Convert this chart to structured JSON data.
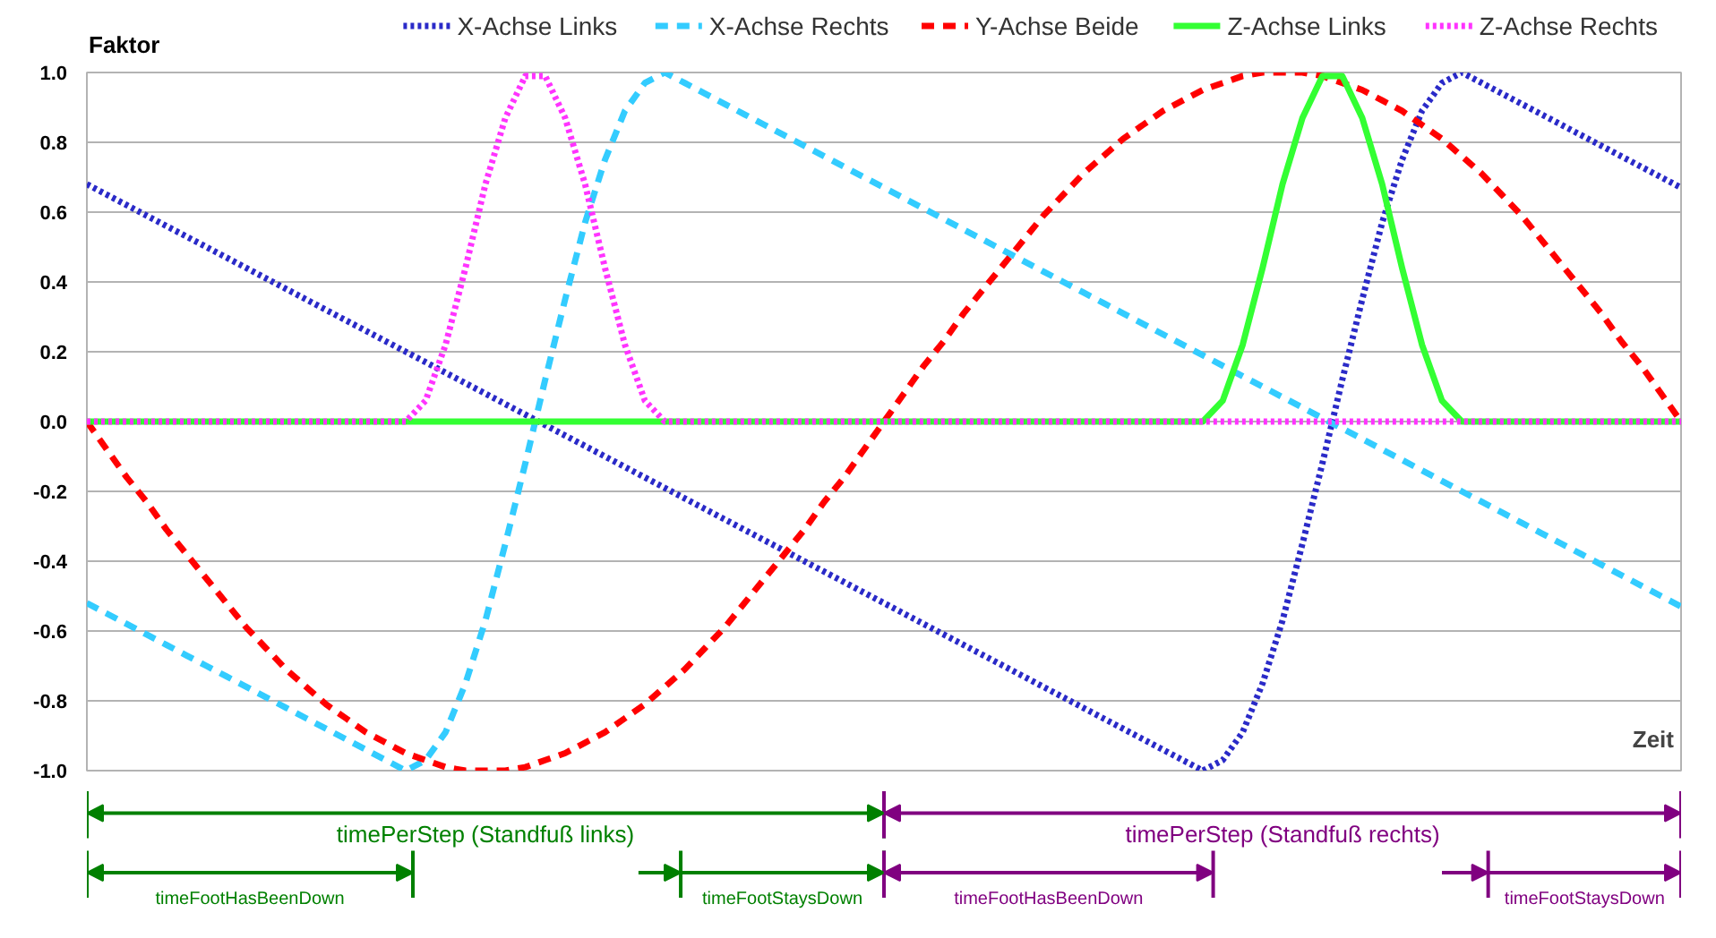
{
  "chart_data": {
    "type": "line",
    "ylabel": "Faktor",
    "xlabel": "Zeit",
    "categories": [
      null,
      null,
      null,
      null,
      null,
      null,
      null,
      null,
      null,
      null,
      null,
      null,
      null,
      null,
      null,
      null,
      null,
      null,
      null,
      null,
      null,
      null,
      null,
      null,
      null,
      null,
      null,
      null,
      null,
      null,
      null,
      null,
      null,
      null,
      null,
      null,
      null,
      null,
      null,
      null,
      null,
      null,
      null,
      null,
      null,
      null,
      null,
      null,
      null,
      null,
      null,
      null,
      null,
      null,
      null,
      null,
      null,
      null,
      null,
      null,
      null,
      null,
      null,
      null,
      null,
      null,
      null,
      null,
      null,
      null,
      null,
      null,
      null,
      null,
      null,
      null,
      null,
      null,
      null,
      null,
      null
    ],
    "series": [
      {
        "name": "X-Achse Links",
        "color": "#2a2ac8",
        "line_style": "dotted",
        "values": [
          0.68,
          0.65,
          0.62,
          0.59,
          0.56,
          0.53,
          0.5,
          0.47,
          0.44,
          0.41,
          0.38,
          0.35,
          0.32,
          0.29,
          0.26,
          0.23,
          0.2,
          0.17,
          0.14,
          0.11,
          0.08,
          0.05,
          0.02,
          -0.01,
          -0.04,
          -0.07,
          -0.1,
          -0.13,
          -0.16,
          -0.19,
          -0.22,
          -0.25,
          -0.28,
          -0.31,
          -0.34,
          -0.37,
          -0.4,
          -0.43,
          -0.46,
          -0.49,
          -0.52,
          -0.55,
          -0.58,
          -0.61,
          -0.64,
          -0.67,
          -0.7,
          -0.73,
          -0.76,
          -0.79,
          -0.82,
          -0.85,
          -0.88,
          -0.91,
          -0.94,
          -0.97,
          -1.0,
          -0.97,
          -0.89,
          -0.75,
          -0.57,
          -0.35,
          -0.12,
          0.12,
          0.35,
          0.57,
          0.75,
          0.89,
          0.97,
          1.0,
          0.97,
          0.94,
          0.91,
          0.88,
          0.85,
          0.82,
          0.79,
          0.76,
          0.73,
          0.7,
          0.67
        ]
      },
      {
        "name": "X-Achse Rechts",
        "color": "#33ccff",
        "line_style": "dashed",
        "values": [
          -0.52,
          -0.55,
          -0.58,
          -0.61,
          -0.64,
          -0.67,
          -0.7,
          -0.73,
          -0.76,
          -0.79,
          -0.82,
          -0.85,
          -0.88,
          -0.91,
          -0.94,
          -0.97,
          -1.0,
          -0.97,
          -0.89,
          -0.75,
          -0.57,
          -0.35,
          -0.12,
          0.12,
          0.35,
          0.57,
          0.75,
          0.89,
          0.97,
          1.0,
          0.97,
          0.94,
          0.91,
          0.88,
          0.85,
          0.82,
          0.79,
          0.76,
          0.73,
          0.7,
          0.67,
          0.64,
          0.61,
          0.58,
          0.55,
          0.52,
          0.49,
          0.46,
          0.43,
          0.4,
          0.37,
          0.34,
          0.31,
          0.28,
          0.25,
          0.22,
          0.19,
          0.16,
          0.13,
          0.1,
          0.07,
          0.04,
          0.01,
          -0.02,
          -0.05,
          -0.08,
          -0.11,
          -0.14,
          -0.17,
          -0.2,
          -0.23,
          -0.26,
          -0.29,
          -0.32,
          -0.35,
          -0.38,
          -0.41,
          -0.44,
          -0.47,
          -0.5,
          -0.53
        ]
      },
      {
        "name": "Y-Achse Beide",
        "color": "#ff0000",
        "line_style": "dashed",
        "values": [
          0,
          -0.08,
          -0.16,
          -0.23,
          -0.31,
          -0.38,
          -0.45,
          -0.52,
          -0.59,
          -0.65,
          -0.71,
          -0.76,
          -0.81,
          -0.85,
          -0.89,
          -0.92,
          -0.95,
          -0.97,
          -0.99,
          -1.0,
          -1.0,
          -1.0,
          -0.99,
          -0.97,
          -0.95,
          -0.92,
          -0.89,
          -0.85,
          -0.81,
          -0.76,
          -0.71,
          -0.65,
          -0.59,
          -0.52,
          -0.45,
          -0.38,
          -0.31,
          -0.23,
          -0.16,
          -0.08,
          0,
          0.08,
          0.16,
          0.23,
          0.31,
          0.38,
          0.45,
          0.52,
          0.59,
          0.65,
          0.71,
          0.76,
          0.81,
          0.85,
          0.89,
          0.92,
          0.95,
          0.97,
          0.99,
          1.0,
          1.0,
          1.0,
          0.99,
          0.97,
          0.95,
          0.92,
          0.89,
          0.85,
          0.81,
          0.76,
          0.71,
          0.65,
          0.59,
          0.52,
          0.45,
          0.38,
          0.31,
          0.23,
          0.16,
          0.08,
          0
        ]
      },
      {
        "name": "Z-Achse Links",
        "color": "#33ff33",
        "line_style": "solid",
        "values": [
          0,
          0,
          0,
          0,
          0,
          0,
          0,
          0,
          0,
          0,
          0,
          0,
          0,
          0,
          0,
          0,
          0,
          0,
          0,
          0,
          0,
          0,
          0,
          0,
          0,
          0,
          0,
          0,
          0,
          0,
          0,
          0,
          0,
          0,
          0,
          0,
          0,
          0,
          0,
          0,
          0,
          0,
          0,
          0,
          0,
          0,
          0,
          0,
          0,
          0,
          0,
          0,
          0,
          0,
          0,
          0,
          0,
          0.06,
          0.22,
          0.44,
          0.68,
          0.87,
          0.99,
          0.99,
          0.87,
          0.68,
          0.44,
          0.22,
          0.06,
          0,
          0,
          0,
          0,
          0,
          0,
          0,
          0,
          0,
          0,
          0,
          0
        ]
      },
      {
        "name": "Z-Achse Rechts",
        "color": "#ff33ff",
        "line_style": "dotted",
        "values": [
          0,
          0,
          0,
          0,
          0,
          0,
          0,
          0,
          0,
          0,
          0,
          0,
          0,
          0,
          0,
          0,
          0,
          0.06,
          0.22,
          0.44,
          0.68,
          0.87,
          0.99,
          0.99,
          0.87,
          0.68,
          0.44,
          0.22,
          0.06,
          0,
          0,
          0,
          0,
          0,
          0,
          0,
          0,
          0,
          0,
          0,
          0,
          0,
          0,
          0,
          0,
          0,
          0,
          0,
          0,
          0,
          0,
          0,
          0,
          0,
          0,
          0,
          0,
          0,
          0,
          0,
          0,
          0,
          0,
          0,
          0,
          0,
          0,
          0,
          0,
          0,
          0,
          0,
          0,
          0,
          0,
          0,
          0,
          0,
          0,
          0,
          0
        ]
      }
    ],
    "ylim": [
      -1.0,
      1.0
    ],
    "yticks": [
      {
        "value": -1.0,
        "label": "-1.0"
      },
      {
        "value": -0.8,
        "label": "-0.8"
      },
      {
        "value": -0.6,
        "label": "-0.6"
      },
      {
        "value": -0.4,
        "label": "-0.4"
      },
      {
        "value": -0.2,
        "label": "-0.2"
      },
      {
        "value": 0,
        "label": "0.0"
      },
      {
        "value": 0.2,
        "label": "0.2"
      },
      {
        "value": 0.4,
        "label": "0.4"
      },
      {
        "value": 0.6,
        "label": "0.6"
      },
      {
        "value": 0.8,
        "label": "0.8"
      },
      {
        "value": 1.0,
        "label": "1.0"
      }
    ],
    "grid": "y",
    "legend": "top",
    "tick_labels": "y",
    "marker": "none",
    "annotations": [
      "timePerStep (Standfuß links)",
      "timePerStep (Standfuß rechts)",
      "timeFootHasBeenDown",
      "timeFootStaysDown",
      "timeFootHasBeenDown",
      "timeFootStaysDown"
    ]
  }
}
